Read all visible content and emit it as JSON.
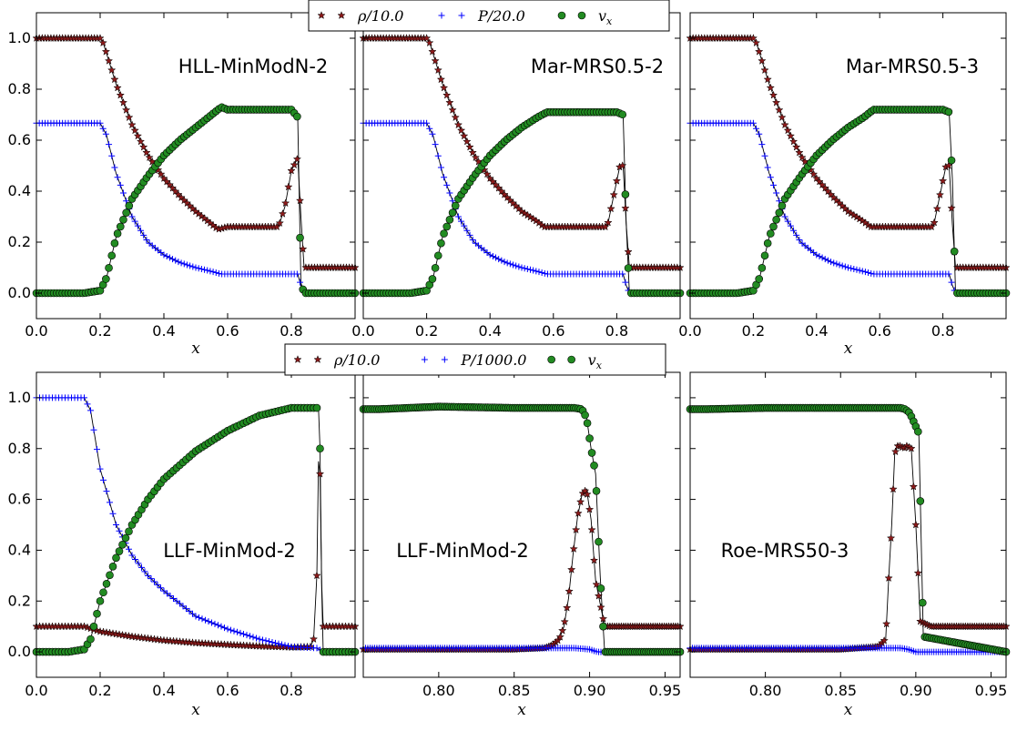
{
  "chart_data": [
    {
      "type": "scatter",
      "panel_label": "HLL-MinModN-2",
      "xlabel": "x",
      "xlim": [
        0.0,
        1.0
      ],
      "ylim": [
        -0.1,
        1.1
      ],
      "xticks": [
        "0.0",
        "0.2",
        "0.4",
        "0.6",
        "0.8"
      ],
      "yticks": [
        "0.0",
        "0.2",
        "0.4",
        "0.6",
        "0.8",
        "1.0"
      ],
      "series": [
        {
          "name": "ρ/10.0",
          "x": [
            0.0,
            0.1,
            0.2,
            0.21,
            0.25,
            0.3,
            0.35,
            0.4,
            0.45,
            0.5,
            0.55,
            0.57,
            0.6,
            0.7,
            0.76,
            0.78,
            0.8,
            0.82,
            0.83,
            0.84,
            0.9,
            1.0
          ],
          "y": [
            1.0,
            1.0,
            1.0,
            0.98,
            0.82,
            0.66,
            0.54,
            0.45,
            0.38,
            0.32,
            0.27,
            0.25,
            0.26,
            0.26,
            0.26,
            0.34,
            0.48,
            0.53,
            0.3,
            0.1,
            0.1,
            0.1
          ]
        },
        {
          "name": "P/20.0",
          "x": [
            0.0,
            0.1,
            0.2,
            0.22,
            0.25,
            0.3,
            0.35,
            0.4,
            0.45,
            0.5,
            0.55,
            0.58,
            0.7,
            0.82,
            0.83,
            0.84,
            1.0
          ],
          "y": [
            0.667,
            0.667,
            0.667,
            0.62,
            0.47,
            0.3,
            0.2,
            0.15,
            0.12,
            0.1,
            0.085,
            0.075,
            0.075,
            0.075,
            0.03,
            0.0,
            0.0
          ]
        },
        {
          "name": "v_x",
          "x": [
            0.0,
            0.15,
            0.2,
            0.22,
            0.25,
            0.3,
            0.35,
            0.4,
            0.45,
            0.5,
            0.55,
            0.58,
            0.6,
            0.7,
            0.8,
            0.82,
            0.83,
            0.84,
            0.9,
            1.0
          ],
          "y": [
            0.0,
            0.0,
            0.01,
            0.06,
            0.22,
            0.37,
            0.46,
            0.54,
            0.6,
            0.65,
            0.7,
            0.73,
            0.72,
            0.72,
            0.72,
            0.69,
            0.04,
            0.0,
            0.0,
            0.0
          ]
        }
      ]
    },
    {
      "type": "scatter",
      "panel_label": "Mar-MRS0.5-2",
      "xlabel": "",
      "xlim": [
        0.0,
        1.0
      ],
      "ylim": [
        -0.1,
        1.1
      ],
      "xticks": [
        "0.0",
        "0.2",
        "0.4",
        "0.6",
        "0.8"
      ],
      "series": [
        {
          "name": "ρ/10.0",
          "x": [
            0.0,
            0.1,
            0.2,
            0.21,
            0.25,
            0.3,
            0.35,
            0.4,
            0.45,
            0.5,
            0.55,
            0.57,
            0.6,
            0.7,
            0.77,
            0.79,
            0.81,
            0.82,
            0.83,
            0.84,
            0.9,
            1.0
          ],
          "y": [
            1.0,
            1.0,
            1.0,
            0.98,
            0.82,
            0.66,
            0.54,
            0.45,
            0.38,
            0.32,
            0.28,
            0.26,
            0.26,
            0.26,
            0.26,
            0.38,
            0.5,
            0.5,
            0.27,
            0.1,
            0.1,
            0.1
          ]
        },
        {
          "name": "P/20.0",
          "x": [
            0.0,
            0.1,
            0.2,
            0.22,
            0.25,
            0.3,
            0.35,
            0.4,
            0.45,
            0.5,
            0.55,
            0.58,
            0.7,
            0.82,
            0.83,
            0.84,
            1.0
          ],
          "y": [
            0.667,
            0.667,
            0.667,
            0.62,
            0.47,
            0.3,
            0.2,
            0.15,
            0.12,
            0.1,
            0.085,
            0.075,
            0.075,
            0.075,
            0.03,
            0.0,
            0.0
          ]
        },
        {
          "name": "v_x",
          "x": [
            0.0,
            0.15,
            0.2,
            0.22,
            0.25,
            0.3,
            0.35,
            0.4,
            0.45,
            0.5,
            0.55,
            0.58,
            0.6,
            0.7,
            0.8,
            0.82,
            0.83,
            0.84,
            0.9,
            1.0
          ],
          "y": [
            0.0,
            0.0,
            0.01,
            0.06,
            0.22,
            0.37,
            0.46,
            0.54,
            0.6,
            0.65,
            0.69,
            0.71,
            0.71,
            0.71,
            0.71,
            0.7,
            0.27,
            0.0,
            0.0,
            0.0
          ]
        }
      ]
    },
    {
      "type": "scatter",
      "panel_label": "Mar-MRS0.5-3",
      "xlabel": "x",
      "xlim": [
        0.0,
        1.0
      ],
      "ylim": [
        -0.1,
        1.1
      ],
      "xticks": [
        "0.0",
        "0.2",
        "0.4",
        "0.6",
        "0.8"
      ],
      "series": [
        {
          "name": "ρ/10.0",
          "x": [
            0.0,
            0.1,
            0.2,
            0.21,
            0.25,
            0.3,
            0.35,
            0.4,
            0.45,
            0.5,
            0.55,
            0.57,
            0.6,
            0.7,
            0.77,
            0.79,
            0.81,
            0.82,
            0.83,
            0.84,
            0.9,
            1.0
          ],
          "y": [
            1.0,
            1.0,
            1.0,
            0.98,
            0.82,
            0.66,
            0.54,
            0.45,
            0.38,
            0.32,
            0.28,
            0.26,
            0.26,
            0.26,
            0.26,
            0.38,
            0.5,
            0.5,
            0.27,
            0.1,
            0.1,
            0.1
          ]
        },
        {
          "name": "P/20.0",
          "x": [
            0.0,
            0.1,
            0.2,
            0.22,
            0.25,
            0.3,
            0.35,
            0.4,
            0.45,
            0.5,
            0.55,
            0.58,
            0.7,
            0.82,
            0.83,
            0.84,
            1.0
          ],
          "y": [
            0.667,
            0.667,
            0.667,
            0.62,
            0.47,
            0.3,
            0.2,
            0.15,
            0.12,
            0.1,
            0.085,
            0.075,
            0.075,
            0.075,
            0.03,
            0.0,
            0.0
          ]
        },
        {
          "name": "v_x",
          "x": [
            0.0,
            0.15,
            0.2,
            0.22,
            0.25,
            0.3,
            0.35,
            0.4,
            0.45,
            0.5,
            0.55,
            0.58,
            0.6,
            0.7,
            0.8,
            0.82,
            0.83,
            0.84,
            0.9,
            1.0
          ],
          "y": [
            0.0,
            0.0,
            0.01,
            0.06,
            0.22,
            0.37,
            0.46,
            0.54,
            0.6,
            0.65,
            0.69,
            0.72,
            0.72,
            0.72,
            0.72,
            0.71,
            0.45,
            0.0,
            0.0,
            0.0
          ]
        }
      ]
    },
    {
      "type": "scatter",
      "panel_label": "LLF-MinMod-2",
      "xlabel": "x",
      "xlim": [
        0.0,
        1.0
      ],
      "ylim": [
        -0.1,
        1.1
      ],
      "xticks": [
        "0.0",
        "0.2",
        "0.4",
        "0.6",
        "0.8"
      ],
      "yticks": [
        "0.0",
        "0.2",
        "0.4",
        "0.6",
        "0.8",
        "1.0"
      ],
      "series": [
        {
          "name": "ρ/10.0",
          "x": [
            0.0,
            0.1,
            0.15,
            0.2,
            0.3,
            0.4,
            0.5,
            0.6,
            0.7,
            0.8,
            0.86,
            0.87,
            0.88,
            0.885,
            0.89,
            0.895,
            0.9,
            0.91,
            1.0
          ],
          "y": [
            0.1,
            0.1,
            0.1,
            0.08,
            0.06,
            0.045,
            0.035,
            0.028,
            0.022,
            0.018,
            0.02,
            0.05,
            0.3,
            0.75,
            0.7,
            0.27,
            0.1,
            0.1,
            0.1
          ]
        },
        {
          "name": "P/1000.0",
          "x": [
            0.0,
            0.1,
            0.15,
            0.17,
            0.2,
            0.25,
            0.3,
            0.35,
            0.4,
            0.5,
            0.6,
            0.7,
            0.8,
            0.88,
            0.9,
            1.0
          ],
          "y": [
            1.0,
            1.0,
            1.0,
            0.95,
            0.72,
            0.5,
            0.38,
            0.3,
            0.24,
            0.14,
            0.09,
            0.05,
            0.02,
            0.015,
            0.0,
            0.0
          ]
        },
        {
          "name": "v_x",
          "x": [
            0.0,
            0.1,
            0.15,
            0.17,
            0.2,
            0.25,
            0.3,
            0.35,
            0.4,
            0.5,
            0.6,
            0.7,
            0.8,
            0.86,
            0.885,
            0.89,
            0.895,
            0.9,
            1.0
          ],
          "y": [
            0.0,
            0.0,
            0.01,
            0.05,
            0.2,
            0.37,
            0.5,
            0.6,
            0.68,
            0.79,
            0.87,
            0.93,
            0.96,
            0.96,
            0.96,
            0.8,
            0.25,
            0.0,
            0.0
          ]
        }
      ]
    },
    {
      "type": "scatter",
      "panel_label": "LLF-MinMod-2",
      "xlabel": "x",
      "xlim": [
        0.75,
        0.96
      ],
      "ylim": [
        -0.1,
        1.1
      ],
      "xticks": [
        "0.80",
        "0.85",
        "0.90",
        "0.95"
      ],
      "series": [
        {
          "name": "ρ/10.0",
          "x": [
            0.76,
            0.8,
            0.85,
            0.87,
            0.875,
            0.88,
            0.883,
            0.886,
            0.889,
            0.892,
            0.895,
            0.898,
            0.901,
            0.904,
            0.91,
            0.93,
            0.96
          ],
          "y": [
            0.01,
            0.01,
            0.01,
            0.015,
            0.025,
            0.05,
            0.1,
            0.21,
            0.38,
            0.53,
            0.62,
            0.64,
            0.52,
            0.28,
            0.1,
            0.1,
            0.1
          ]
        },
        {
          "name": "P/1000.0",
          "x": [
            0.76,
            0.8,
            0.85,
            0.88,
            0.89,
            0.9,
            0.905,
            0.91,
            0.96
          ],
          "y": [
            0.015,
            0.015,
            0.015,
            0.015,
            0.015,
            0.01,
            0.0,
            0.0,
            0.0
          ]
        },
        {
          "name": "v_x",
          "x": [
            0.76,
            0.8,
            0.85,
            0.88,
            0.89,
            0.895,
            0.898,
            0.901,
            0.904,
            0.907,
            0.91,
            0.96
          ],
          "y": [
            0.955,
            0.965,
            0.96,
            0.96,
            0.96,
            0.955,
            0.92,
            0.8,
            0.7,
            0.3,
            0.0,
            0.0
          ]
        }
      ]
    },
    {
      "type": "scatter",
      "panel_label": "Roe-MRS50-3",
      "xlabel": "x",
      "xlim": [
        0.75,
        0.96
      ],
      "ylim": [
        -0.1,
        1.1
      ],
      "xticks": [
        "0.80",
        "0.85",
        "0.90",
        "0.95"
      ],
      "series": [
        {
          "name": "ρ/10.0",
          "x": [
            0.76,
            0.8,
            0.85,
            0.875,
            0.88,
            0.882,
            0.884,
            0.886,
            0.888,
            0.89,
            0.892,
            0.894,
            0.897,
            0.9,
            0.903,
            0.91,
            0.96
          ],
          "y": [
            0.01,
            0.01,
            0.01,
            0.02,
            0.05,
            0.29,
            0.5,
            0.78,
            0.81,
            0.81,
            0.8,
            0.81,
            0.8,
            0.5,
            0.12,
            0.1,
            0.1
          ]
        },
        {
          "name": "P/1000.0",
          "x": [
            0.76,
            0.8,
            0.85,
            0.88,
            0.89,
            0.895,
            0.9,
            0.96
          ],
          "y": [
            0.015,
            0.015,
            0.015,
            0.015,
            0.015,
            0.01,
            0.0,
            0.0
          ]
        },
        {
          "name": "v_x",
          "x": [
            0.76,
            0.8,
            0.85,
            0.88,
            0.89,
            0.893,
            0.896,
            0.899,
            0.902,
            0.905,
            0.96
          ],
          "y": [
            0.955,
            0.96,
            0.96,
            0.96,
            0.96,
            0.955,
            0.94,
            0.9,
            0.86,
            0.06,
            0.0
          ]
        }
      ]
    }
  ],
  "legend_top": {
    "items": [
      "ρ/10.0",
      "P/20.0",
      "v_x"
    ]
  },
  "legend_bottom": {
    "items": [
      "ρ/10.0",
      "P/1000.0",
      "v_x"
    ]
  },
  "colors": {
    "rho": "#8b1a1a",
    "pressure": "#0000ff",
    "velocity": "#228b22",
    "exact": "#000000"
  }
}
